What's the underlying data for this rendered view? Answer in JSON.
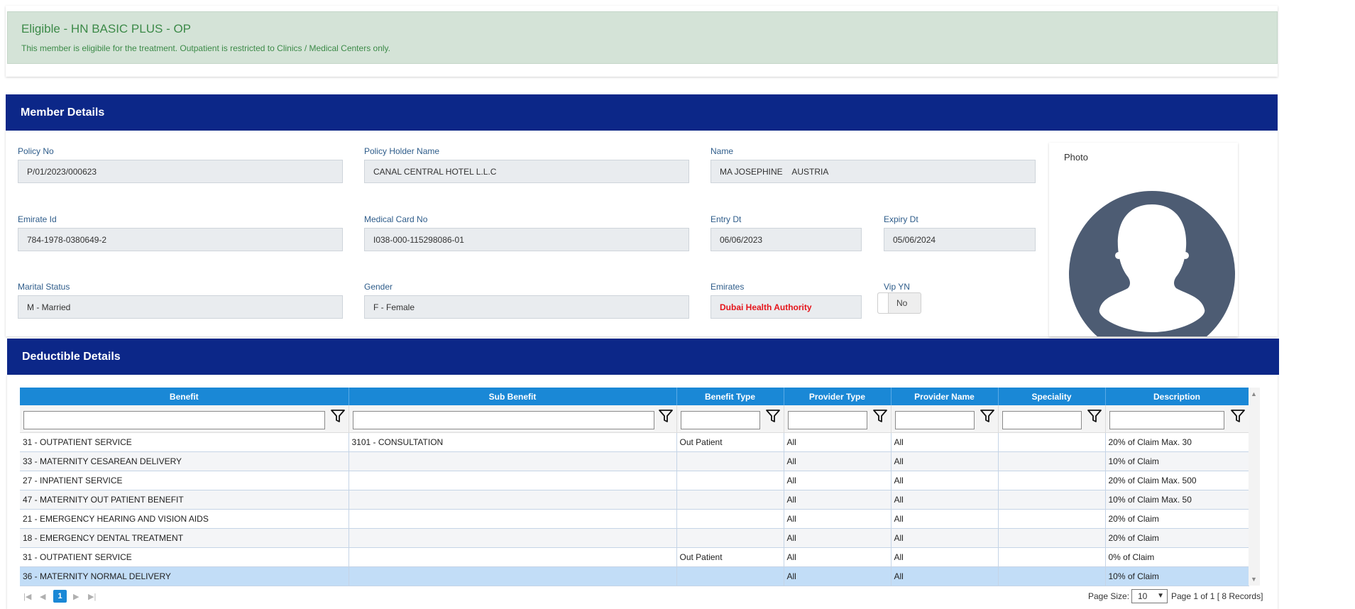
{
  "eligibility": {
    "title": "Eligible - HN BASIC PLUS - OP",
    "message": "This member is eligibile for the treatment. Outpatient is restricted to Clinics / Medical Centers only."
  },
  "member": {
    "header": "Member Details",
    "fields": {
      "policy_no": {
        "label": "Policy No",
        "value": "P/01/2023/000623"
      },
      "policy_holder": {
        "label": "Policy Holder Name",
        "value": "CANAL CENTRAL HOTEL L.L.C"
      },
      "name": {
        "label": "Name",
        "value": "MA JOSEPHINE    AUSTRIA"
      },
      "emirate_id": {
        "label": "Emirate Id",
        "value": "784-1978-0380649-2"
      },
      "medical_card": {
        "label": "Medical Card No",
        "value": "I038-000-115298086-01"
      },
      "entry_dt": {
        "label": "Entry Dt",
        "value": "06/06/2023"
      },
      "expiry_dt": {
        "label": "Expiry Dt",
        "value": "05/06/2024"
      },
      "marital": {
        "label": "Marital Status",
        "value": "M - Married"
      },
      "gender": {
        "label": "Gender",
        "value": "F - Female"
      },
      "emirates": {
        "label": "Emirates",
        "value": "Dubai Health Authority"
      },
      "vip": {
        "label": "Vip YN",
        "value": "No"
      }
    },
    "photo_label": "Photo"
  },
  "deductible": {
    "header": "Deductible Details",
    "columns": [
      "Benefit",
      "Sub Benefit",
      "Benefit Type",
      "Provider Type",
      "Provider Name",
      "Speciality",
      "Description"
    ],
    "rows": [
      [
        "31 - OUTPATIENT SERVICE",
        "3101 - CONSULTATION",
        "Out Patient",
        "All",
        "All",
        "",
        "20% of Claim Max. 30"
      ],
      [
        "33 - MATERNITY CESAREAN DELIVERY",
        "",
        "",
        "All",
        "All",
        "",
        "10% of Claim"
      ],
      [
        "27 - INPATIENT SERVICE",
        "",
        "",
        "All",
        "All",
        "",
        "20% of Claim Max. 500"
      ],
      [
        "47 - MATERNITY OUT PATIENT BENEFIT",
        "",
        "",
        "All",
        "All",
        "",
        "10% of Claim Max. 50"
      ],
      [
        "21 - EMERGENCY HEARING AND VISION AIDS",
        "",
        "",
        "All",
        "All",
        "",
        "20% of Claim"
      ],
      [
        "18 - EMERGENCY DENTAL TREATMENT",
        "",
        "",
        "All",
        "All",
        "",
        "20% of Claim"
      ],
      [
        "31 - OUTPATIENT SERVICE",
        "",
        "Out Patient",
        "All",
        "All",
        "",
        "0% of Claim"
      ],
      [
        "36 - MATERNITY NORMAL DELIVERY",
        "",
        "",
        "All",
        "All",
        "",
        "10% of Claim"
      ]
    ],
    "selected_row": 7
  },
  "pager": {
    "current_page": "1",
    "page_size_label": "Page Size:",
    "page_size": "10",
    "info": "Page 1 of 1 [ 8 Records]"
  },
  "colors": {
    "header_bg": "#0c2788",
    "grid_header_bg": "#1a88d6",
    "eligible_bg": "#d4e3d7",
    "eligible_text": "#3c8a48",
    "emirates_text": "#e5151b",
    "avatar": "#4d5c73"
  }
}
